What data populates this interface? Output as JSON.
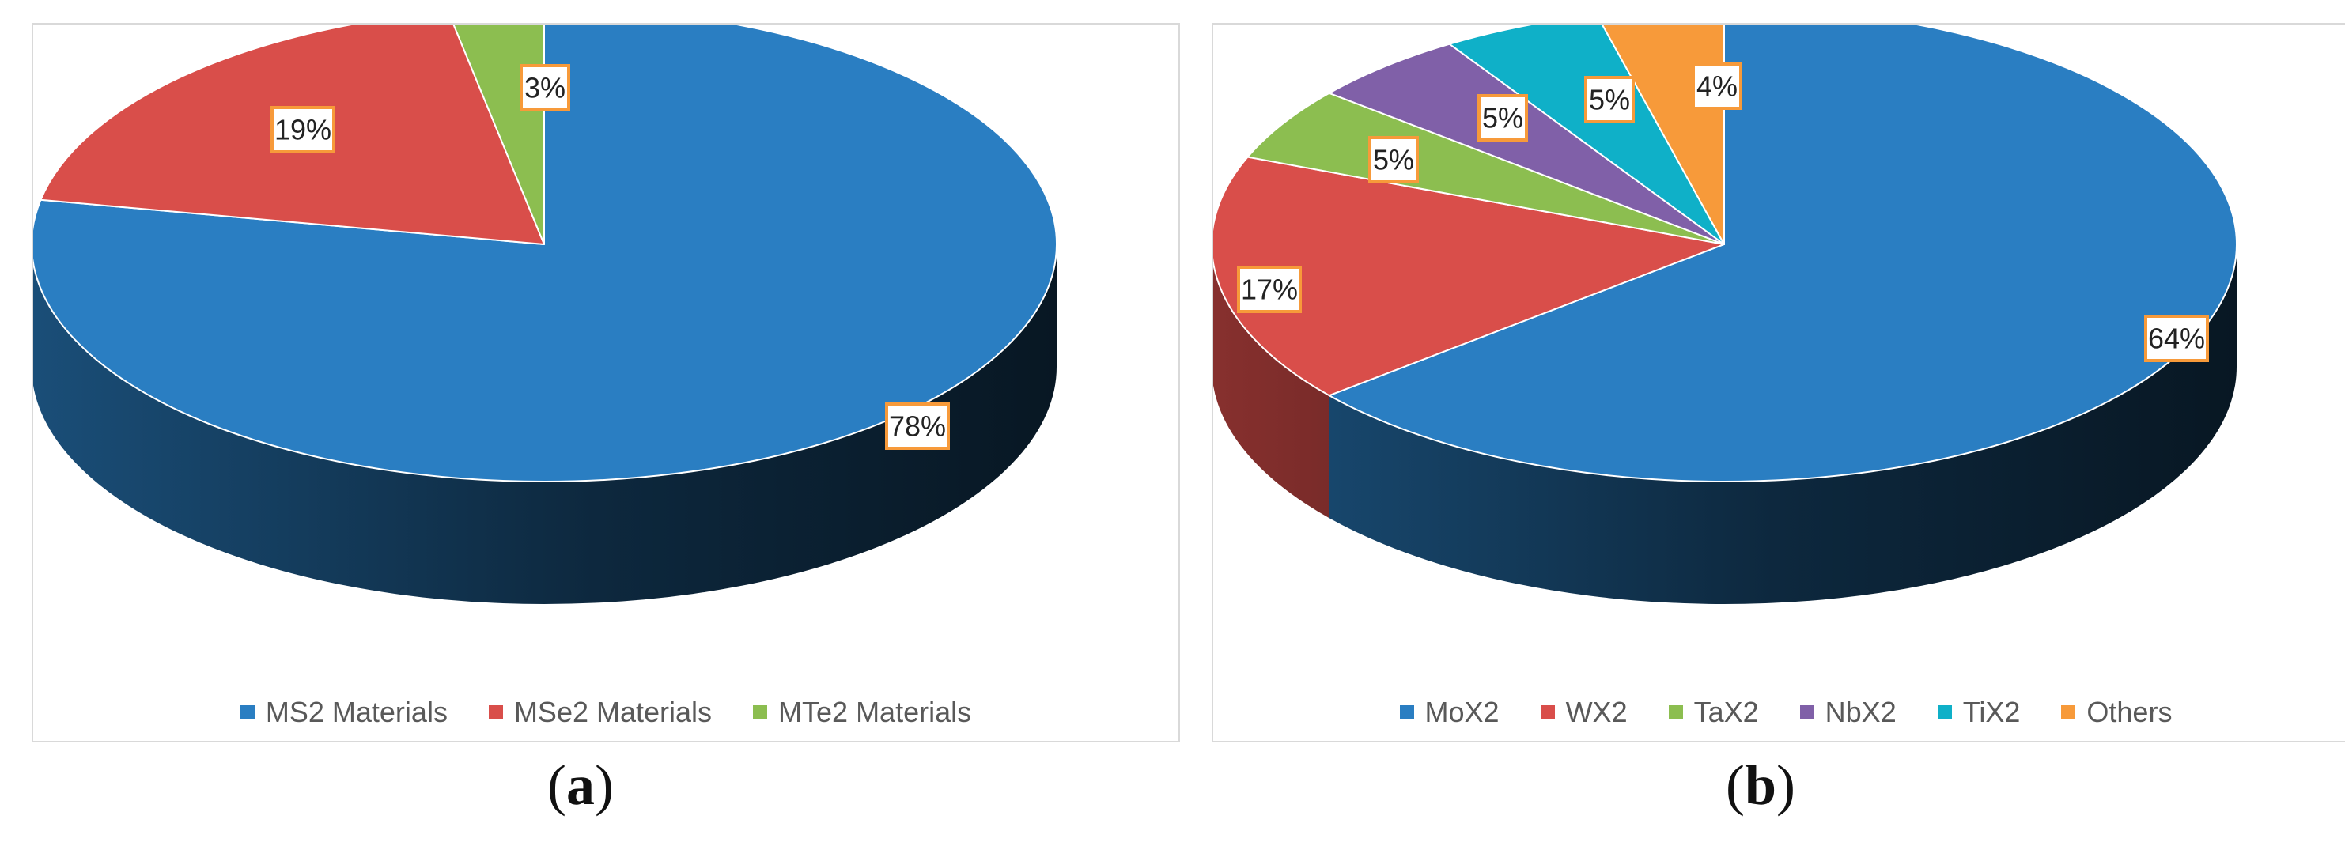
{
  "chart_data": [
    {
      "type": "pie",
      "style": "3d",
      "panel_caption": "a",
      "title": "",
      "categories": [
        "MS2 Materials",
        "MSe2 Materials",
        "MTe2 Materials"
      ],
      "values": [
        78,
        19,
        3
      ],
      "data_labels": [
        "78%",
        "19%",
        "3%"
      ],
      "colors": [
        "#2a7ec2",
        "#d94e4a",
        "#8cbe50"
      ],
      "legend_position": "bottom",
      "start_angle_deg": 90,
      "direction": "clockwise"
    },
    {
      "type": "pie",
      "style": "3d",
      "panel_caption": "b",
      "title": "",
      "categories": [
        "MoX2",
        "WX2",
        "TaX2",
        "NbX2",
        "TiX2",
        "Others"
      ],
      "values": [
        64,
        17,
        5,
        5,
        5,
        4
      ],
      "data_labels": [
        "64%",
        "17%",
        "5%",
        "5%",
        "5%",
        "4%"
      ],
      "colors": [
        "#2a7ec2",
        "#d94e4a",
        "#8cbe50",
        "#8060a8",
        "#0fb0c8",
        "#f79a3a"
      ],
      "legend_position": "bottom",
      "start_angle_deg": 90,
      "direction": "clockwise"
    }
  ],
  "label_box": {
    "border_color": "#f79a3a",
    "fill": "#ffffff"
  }
}
